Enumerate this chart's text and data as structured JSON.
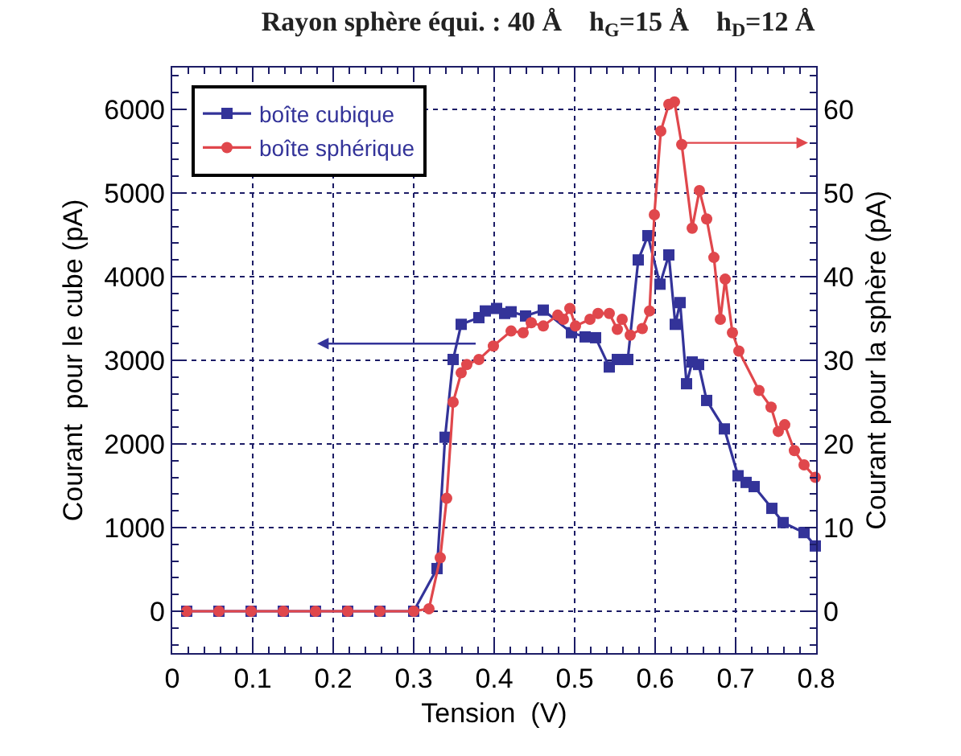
{
  "chart_data": {
    "type": "line",
    "title": "Rayon sphère équi. : 40 Å    h$_{G}$=15 Å    h$_{D}$=12 Å",
    "xlabel": "Tension  (V)",
    "ylabel": "Courant  pour le cube (pA)",
    "y2label": "Courant pour la sphère (pA)",
    "xlim": [
      0,
      0.8
    ],
    "xticks": [
      0,
      0.1,
      0.2,
      0.3,
      0.4,
      0.5,
      0.6,
      0.7,
      0.8
    ],
    "ylim": [
      -500,
      6500
    ],
    "yticks": [
      0,
      1000,
      2000,
      3000,
      4000,
      5000,
      6000
    ],
    "y2lim": [
      -5,
      65
    ],
    "y2ticks": [
      0,
      10,
      20,
      30,
      40,
      50,
      60
    ],
    "grid": true,
    "legend": "top left",
    "line_style": "solid",
    "series": [
      {
        "name": "boîte cubique",
        "color": "#333399",
        "marker": "square",
        "x": [
          0.018,
          0.058,
          0.098,
          0.138,
          0.178,
          0.218,
          0.258,
          0.3,
          0.329,
          0.339,
          0.349,
          0.359,
          0.381,
          0.389,
          0.403,
          0.413,
          0.421,
          0.439,
          0.461,
          0.496,
          0.513,
          0.526,
          0.543,
          0.553,
          0.566,
          0.579,
          0.591,
          0.606,
          0.617,
          0.625,
          0.631,
          0.639,
          0.646,
          0.654,
          0.664,
          0.686,
          0.703,
          0.713,
          0.723,
          0.745,
          0.759,
          0.785,
          0.799
        ],
        "values": [
          0,
          0,
          0,
          0,
          0,
          0,
          0,
          0,
          510,
          2080,
          3010,
          3430,
          3510,
          3590,
          3620,
          3560,
          3580,
          3530,
          3600,
          3330,
          3280,
          3270,
          2920,
          3010,
          3010,
          4200,
          4490,
          3910,
          4260,
          3430,
          3690,
          2720,
          2980,
          2950,
          2520,
          2180,
          1620,
          1540,
          1490,
          1230,
          1060,
          940,
          780
        ]
      },
      {
        "name": "boîte sphérique",
        "color": "#e0474c",
        "marker": "circle",
        "axis": "y2",
        "x": [
          0.018,
          0.058,
          0.098,
          0.138,
          0.178,
          0.218,
          0.258,
          0.3,
          0.319,
          0.333,
          0.341,
          0.349,
          0.359,
          0.366,
          0.381,
          0.399,
          0.421,
          0.436,
          0.446,
          0.461,
          0.479,
          0.486,
          0.494,
          0.501,
          0.519,
          0.529,
          0.543,
          0.553,
          0.559,
          0.569,
          0.584,
          0.593,
          0.599,
          0.607,
          0.617,
          0.624,
          0.633,
          0.646,
          0.655,
          0.664,
          0.673,
          0.681,
          0.687,
          0.696,
          0.704,
          0.729,
          0.744,
          0.753,
          0.761,
          0.773,
          0.785,
          0.799
        ],
        "values": [
          0,
          0,
          0,
          0,
          0,
          0,
          0,
          0,
          0.3,
          6.4,
          13.5,
          25,
          28.5,
          29.5,
          30.1,
          31.7,
          33.5,
          33.3,
          34.5,
          34.1,
          35.4,
          34.9,
          36.2,
          34.1,
          34.9,
          35.6,
          35.6,
          33.7,
          34.9,
          33,
          33.8,
          35.9,
          47.4,
          57.4,
          60.6,
          60.9,
          55.8,
          45.8,
          50.3,
          46.9,
          42.3,
          34.9,
          39.7,
          33.3,
          31.1,
          26.4,
          24.4,
          21.5,
          22.3,
          19.2,
          17.5,
          16
        ]
      }
    ]
  }
}
